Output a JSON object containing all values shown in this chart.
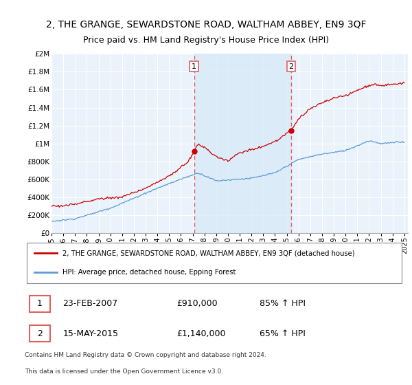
{
  "title": "2, THE GRANGE, SEWARDSTONE ROAD, WALTHAM ABBEY, EN9 3QF",
  "subtitle": "Price paid vs. HM Land Registry's House Price Index (HPI)",
  "ylim": [
    0,
    2000000
  ],
  "yticks": [
    0,
    200000,
    400000,
    600000,
    800000,
    1000000,
    1200000,
    1400000,
    1600000,
    1800000,
    2000000
  ],
  "ytick_labels": [
    "£0",
    "£200K",
    "£400K",
    "£600K",
    "£800K",
    "£1M",
    "£1.2M",
    "£1.4M",
    "£1.6M",
    "£1.8M",
    "£2M"
  ],
  "hpi_color": "#5b9bd5",
  "hpi_fill_color": "#d6e8f7",
  "property_color": "#cc0000",
  "vline_color": "#e06060",
  "vline1_year": 2007.12,
  "vline2_year": 2015.37,
  "marker1_year": 2007.12,
  "marker1_value": 910000,
  "marker2_year": 2015.37,
  "marker2_value": 1140000,
  "legend_property": "2, THE GRANGE, SEWARDSTONE ROAD, WALTHAM ABBEY, EN9 3QF (detached house)",
  "legend_hpi": "HPI: Average price, detached house, Epping Forest",
  "sale1_label": "1",
  "sale1_date": "23-FEB-2007",
  "sale1_price": "£910,000",
  "sale1_hpi": "85% ↑ HPI",
  "sale2_label": "2",
  "sale2_date": "15-MAY-2015",
  "sale2_price": "£1,140,000",
  "sale2_hpi": "65% ↑ HPI",
  "footnote1": "Contains HM Land Registry data © Crown copyright and database right 2024.",
  "footnote2": "This data is licensed under the Open Government Licence v3.0.",
  "bg_color": "#eaf3fb",
  "title_fontsize": 10,
  "subtitle_fontsize": 9
}
